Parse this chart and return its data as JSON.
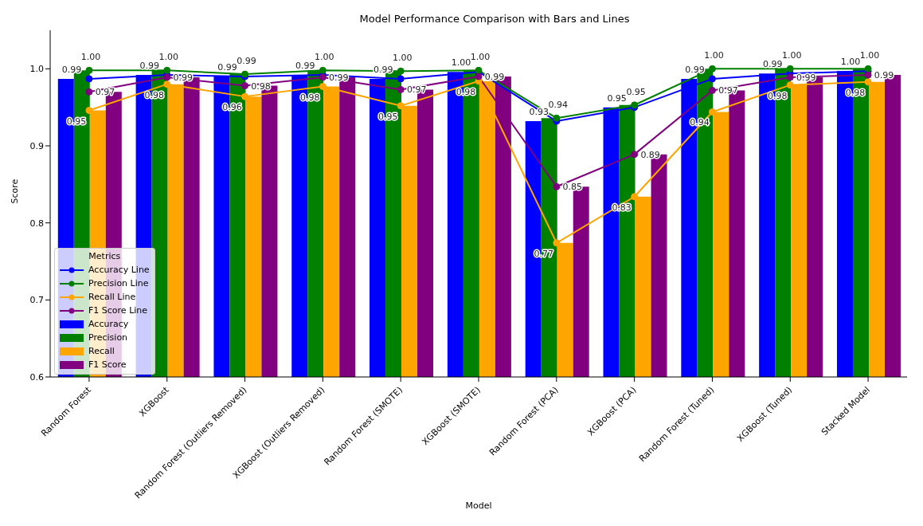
{
  "chart_data": {
    "type": "bar",
    "title": "Model Performance Comparison with Bars and Lines",
    "xlabel": "Model",
    "ylabel": "Score",
    "legend_title": "Metrics",
    "legend": "lower left",
    "grid": false,
    "marker": "circle",
    "categories": [
      "Random Forest",
      "XGBoost",
      "Random Forest (Outliers Removed)",
      "XGBoost (Outliers Removed)",
      "Random Forest (SMOTE)",
      "XGBoost (SMOTE)",
      "Random Forest (PCA)",
      "XGBoost (PCA)",
      "Random Forest (Tuned)",
      "XGBoost (Tuned)",
      "Stacked Model"
    ],
    "ylim": [
      0.6,
      1.05
    ],
    "yticks": [
      0.6,
      0.7,
      0.8,
      0.9,
      {
        "value": 1.0,
        "label": "1.0"
      }
    ],
    "series": [
      {
        "name": "Accuracy Line",
        "type": "line",
        "color": "#0000ff",
        "values": [
          0.987,
          0.992,
          0.99,
          0.992,
          0.987,
          0.996,
          0.932,
          0.95,
          0.987,
          0.994,
          0.997
        ],
        "value_labels": [
          "0.99",
          "0.99",
          "0.99",
          "0.99",
          "0.99",
          "1.00",
          "0.93",
          "0.95",
          "0.99",
          "0.99",
          "1.00"
        ]
      },
      {
        "name": "Precision Line",
        "type": "line",
        "color": "#008000",
        "values": [
          0.998,
          0.998,
          0.993,
          0.998,
          0.997,
          0.998,
          0.936,
          0.953,
          1.0,
          1.0,
          1.0
        ],
        "value_labels": [
          "1.00",
          "1.00",
          "0.99",
          "1.00",
          "1.00",
          "1.00",
          "0.94",
          "0.95",
          "1.00",
          "1.00",
          "1.00"
        ]
      },
      {
        "name": "Recall Line",
        "type": "line",
        "color": "#ffa500",
        "values": [
          0.946,
          0.98,
          0.964,
          0.977,
          0.952,
          0.984,
          0.774,
          0.834,
          0.944,
          0.979,
          0.983
        ],
        "value_labels": [
          "0.95",
          "0.98",
          "0.96",
          "0.98",
          "0.95",
          "0.98",
          "0.77",
          "0.83",
          "0.94",
          "0.98",
          "0.98"
        ]
      },
      {
        "name": "F1 Score Line",
        "type": "line",
        "color": "#800080",
        "values": [
          0.97,
          0.989,
          0.978,
          0.989,
          0.973,
          0.99,
          0.847,
          0.889,
          0.972,
          0.989,
          0.992
        ],
        "value_labels": [
          "0.97",
          "0.99",
          "0.98",
          "0.99",
          "0.97",
          "0.99",
          "0.85",
          "0.89",
          "0.97",
          "0.99",
          "0.99"
        ]
      },
      {
        "name": "Accuracy",
        "color": "#0000ff",
        "values": [
          0.987,
          0.992,
          0.99,
          0.992,
          0.987,
          0.996,
          0.932,
          0.95,
          0.987,
          0.994,
          0.997
        ]
      },
      {
        "name": "Precision",
        "color": "#008000",
        "values": [
          0.998,
          0.998,
          0.993,
          0.998,
          0.997,
          0.998,
          0.936,
          0.953,
          1.0,
          1.0,
          1.0
        ]
      },
      {
        "name": "Recall",
        "color": "#ffa500",
        "values": [
          0.946,
          0.98,
          0.964,
          0.977,
          0.952,
          0.984,
          0.774,
          0.834,
          0.944,
          0.979,
          0.983
        ]
      },
      {
        "name": "F1 Score",
        "color": "#800080",
        "values": [
          0.97,
          0.989,
          0.978,
          0.989,
          0.973,
          0.99,
          0.847,
          0.889,
          0.972,
          0.989,
          0.992
        ]
      }
    ]
  }
}
